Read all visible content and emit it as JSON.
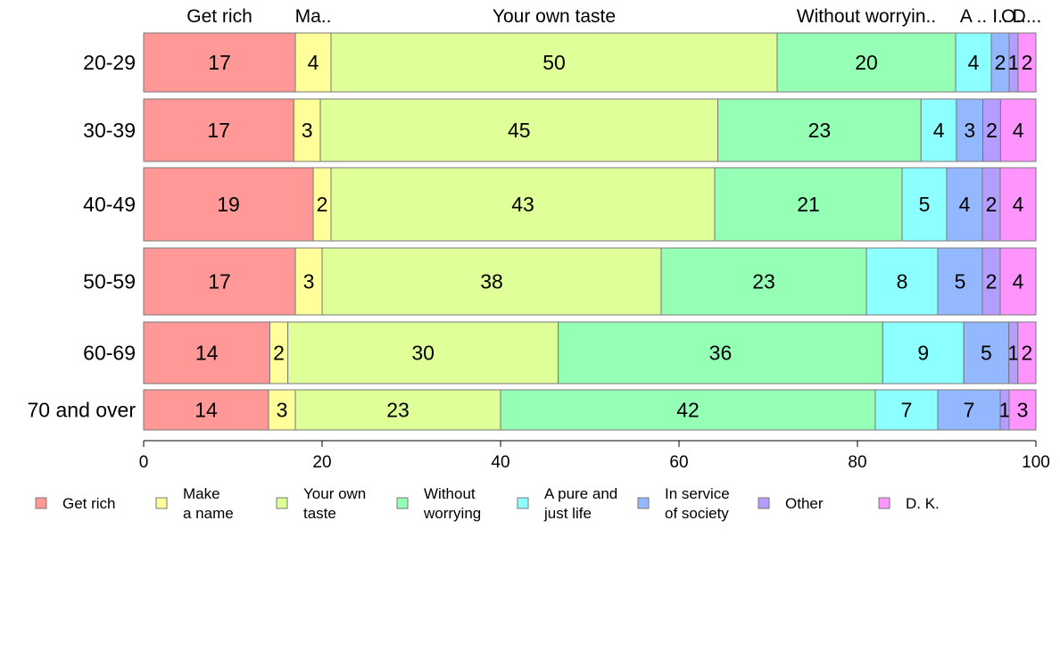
{
  "chart_data": {
    "type": "bar",
    "orientation": "horizontal",
    "stacked": true,
    "categories": [
      "20-29",
      "30-39",
      "40-49",
      "50-59",
      "60-69",
      "70 and over"
    ],
    "xlim": [
      0,
      100
    ],
    "xticks": [
      0,
      20,
      40,
      60,
      80,
      100
    ],
    "grid": false,
    "legend_position": "bottom",
    "top_labels": [
      "Get rich",
      "Ma..",
      "Your own taste",
      "Without worryin..",
      "A ..",
      "I..",
      "O..",
      "D..."
    ],
    "series": [
      {
        "name": "Get rich",
        "legend": [
          "Get rich"
        ],
        "color": "#ff9896",
        "values": [
          17,
          17,
          19,
          17,
          14,
          14
        ]
      },
      {
        "name": "Make a name",
        "legend": [
          "Make",
          "a name"
        ],
        "color": "#ffff99",
        "values": [
          4,
          3,
          2,
          3,
          2,
          3
        ]
      },
      {
        "name": "Your own taste",
        "legend": [
          "Your own",
          "taste"
        ],
        "color": "#dfff99",
        "values": [
          50,
          45,
          43,
          38,
          30,
          23
        ]
      },
      {
        "name": "Without worrying",
        "legend": [
          "Without",
          "worrying"
        ],
        "color": "#94ffb5",
        "values": [
          20,
          23,
          21,
          23,
          36,
          42
        ]
      },
      {
        "name": "A pure and just life",
        "legend": [
          "A pure and",
          "just life"
        ],
        "color": "#8cffff",
        "values": [
          4,
          4,
          5,
          8,
          9,
          7
        ]
      },
      {
        "name": "In service of society",
        "legend": [
          "In service",
          "of society"
        ],
        "color": "#94b8ff",
        "values": [
          2,
          3,
          4,
          5,
          5,
          7
        ]
      },
      {
        "name": "Other",
        "legend": [
          "Other"
        ],
        "color": "#b59cff",
        "values": [
          1,
          2,
          2,
          2,
          1,
          1
        ]
      },
      {
        "name": "D. K.",
        "legend": [
          "D. K."
        ],
        "color": "#ff94ff",
        "values": [
          2,
          4,
          4,
          4,
          2,
          3
        ]
      }
    ]
  }
}
